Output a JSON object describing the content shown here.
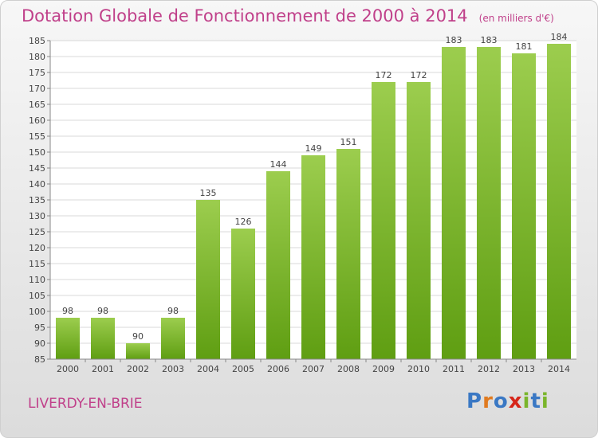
{
  "header": {
    "title": "Dotation Globale de Fonctionnement de 2000 à 2014",
    "unit": "(en milliers d'€)"
  },
  "footer": {
    "commune": "LIVERDY-EN-BRIE",
    "logo": "Proxiti"
  },
  "colors": {
    "bar_top": "#9ccd4e",
    "bar_bottom": "#5f9e12",
    "title": "#c0408a",
    "logo_letters": [
      "#3a78c4",
      "#e07a1f",
      "#3a78c4",
      "#d6261a",
      "#7ab52b",
      "#3a78c4",
      "#7ab52b"
    ]
  },
  "chart_data": {
    "type": "bar",
    "title": "Dotation Globale de Fonctionnement de 2000 à 2014",
    "subtitle": "(en milliers d'€)",
    "categories": [
      "2000",
      "2001",
      "2002",
      "2003",
      "2004",
      "2005",
      "2006",
      "2007",
      "2008",
      "2009",
      "2010",
      "2011",
      "2012",
      "2013",
      "2014"
    ],
    "values": [
      98,
      98,
      90,
      98,
      135,
      126,
      144,
      149,
      151,
      172,
      172,
      183,
      183,
      181,
      184
    ],
    "ylim": [
      85,
      185
    ],
    "yticks": [
      85,
      90,
      95,
      100,
      105,
      110,
      115,
      120,
      125,
      130,
      135,
      140,
      145,
      150,
      155,
      160,
      165,
      170,
      175,
      180,
      185
    ],
    "grid": true,
    "xlabel": "",
    "ylabel": ""
  }
}
